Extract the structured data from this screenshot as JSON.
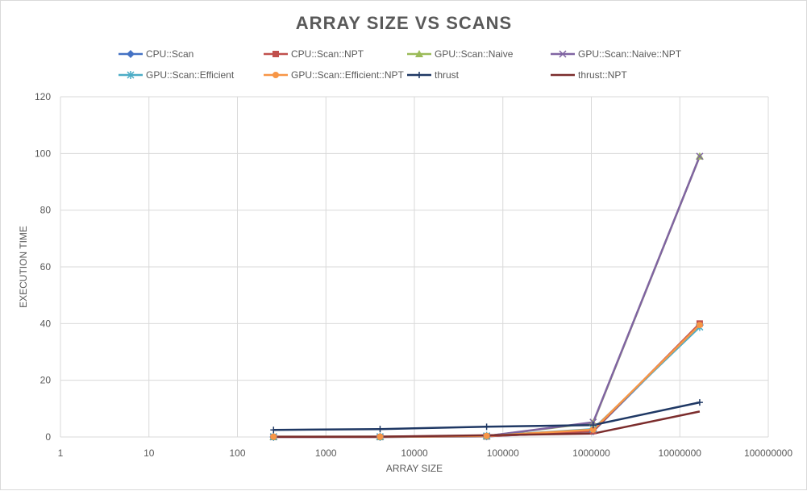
{
  "chart_data": {
    "type": "line",
    "title": "ARRAY SIZE VS SCANS",
    "xlabel": "ARRAY SIZE",
    "ylabel": "EXECUTION TIME",
    "x_scale": "log",
    "xlim": [
      1,
      100000000
    ],
    "ylim": [
      0,
      120
    ],
    "x_ticks": [
      "1",
      "10",
      "100",
      "1000",
      "10000",
      "100000",
      "1000000",
      "10000000",
      "100000000"
    ],
    "y_ticks": [
      "0",
      "20",
      "40",
      "60",
      "80",
      "100",
      "120"
    ],
    "grid": true,
    "legend_position": "top",
    "x": [
      256,
      4096,
      65536,
      1048576,
      16777216
    ],
    "series": [
      {
        "name": "CPU::Scan",
        "color": "#4472c4",
        "marker": "diamond",
        "values": [
          0.0,
          0.01,
          0.2,
          2.0,
          39.5
        ]
      },
      {
        "name": "CPU::Scan::NPT",
        "color": "#c0504d",
        "marker": "square",
        "values": [
          0.0,
          0.01,
          0.2,
          2.1,
          40.0
        ]
      },
      {
        "name": "GPU::Scan::Naive",
        "color": "#9bbb59",
        "marker": "triangle",
        "values": [
          0.05,
          0.05,
          0.3,
          5.0,
          99.0
        ]
      },
      {
        "name": "GPU::Scan::Naive::NPT",
        "color": "#8064a2",
        "marker": "x",
        "values": [
          0.05,
          0.05,
          0.3,
          5.2,
          99.0
        ]
      },
      {
        "name": "GPU::Scan::Efficient",
        "color": "#4bacc6",
        "marker": "asterisk",
        "values": [
          0.1,
          0.1,
          0.4,
          2.8,
          38.8
        ]
      },
      {
        "name": "GPU::Scan::Efficient::NPT",
        "color": "#f79646",
        "marker": "circle",
        "values": [
          0.1,
          0.1,
          0.4,
          2.6,
          39.5
        ]
      },
      {
        "name": "thrust",
        "color": "#1f3864",
        "marker": "plus",
        "values": [
          2.5,
          2.8,
          3.6,
          4.2,
          12.2
        ]
      },
      {
        "name": "thrust::NPT",
        "color": "#7b2c2c",
        "marker": "none",
        "values": [
          0.05,
          0.1,
          0.6,
          1.2,
          9.0
        ]
      }
    ]
  }
}
